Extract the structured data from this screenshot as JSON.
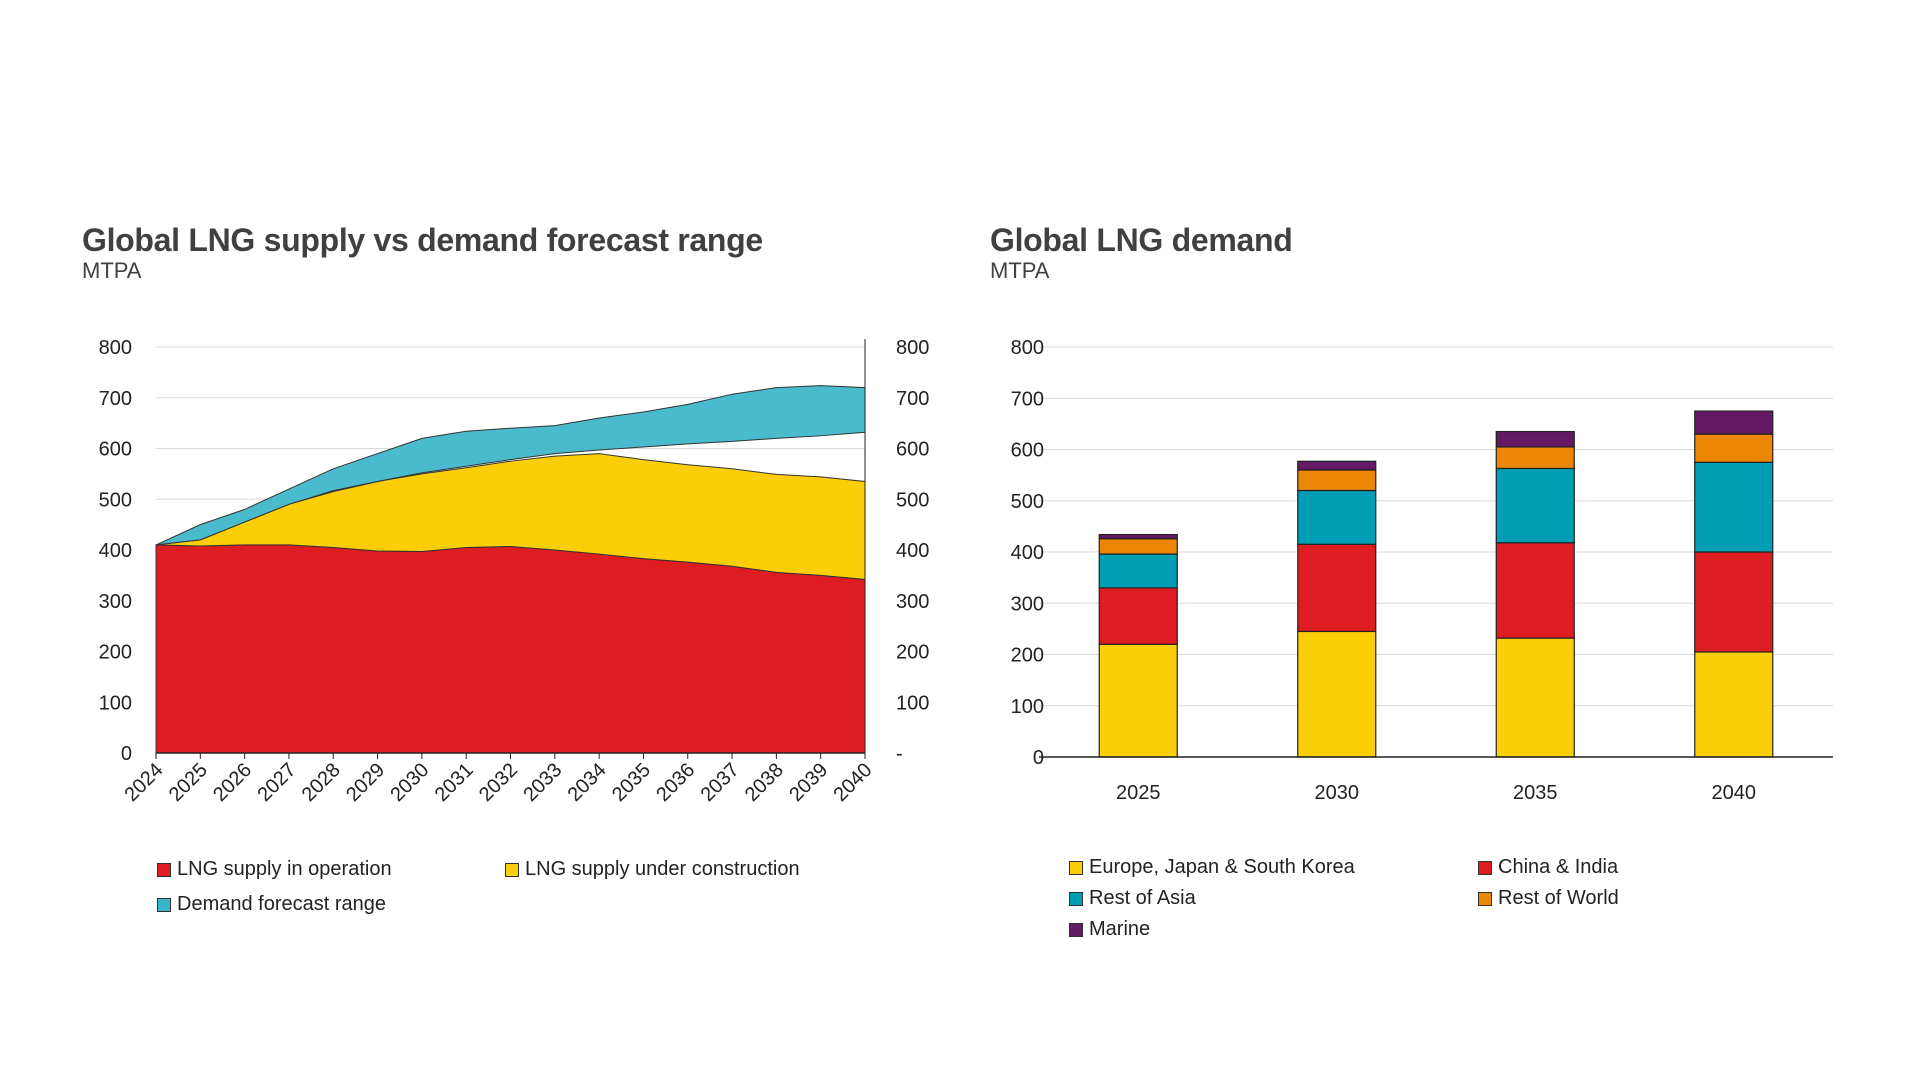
{
  "chart_data": [
    {
      "type": "area",
      "title": "Global LNG supply vs demand forecast range",
      "subtitle": "MTPA",
      "x": [
        "2024",
        "2025",
        "2026",
        "2027",
        "2028",
        "2029",
        "2030",
        "2031",
        "2032",
        "2033",
        "2034",
        "2035",
        "2036",
        "2037",
        "2038",
        "2039",
        "2040"
      ],
      "series": [
        {
          "name": "LNG supply in operation",
          "color": "#DD1D21",
          "values": [
            410,
            408,
            410,
            410,
            405,
            398,
            397,
            405,
            407,
            400,
            392,
            383,
            376,
            368,
            356,
            350,
            342
          ]
        },
        {
          "name": "LNG supply under construction",
          "color": "#FBCE07",
          "values": [
            0,
            12,
            45,
            80,
            110,
            137,
            153,
            157,
            168,
            185,
            198,
            195,
            192,
            192,
            193,
            194,
            193
          ]
        },
        {
          "name": "Demand forecast range",
          "color": "#3BB5C8",
          "low": [
            410,
            420,
            455,
            490,
            517,
            535,
            552,
            565,
            578,
            590,
            597,
            603,
            609,
            614,
            620,
            625,
            632
          ],
          "high": [
            410,
            450,
            480,
            520,
            560,
            590,
            620,
            634,
            640,
            645,
            660,
            672,
            687,
            707,
            720,
            724,
            720
          ]
        }
      ],
      "ylim": [
        0,
        800
      ],
      "yticks": [
        "0",
        "100",
        "200",
        "300",
        "400",
        "500",
        "600",
        "700",
        "800"
      ],
      "y2ticks": [
        "-",
        "100",
        "200",
        "300",
        "400",
        "500",
        "600",
        "700",
        "800"
      ],
      "grid": true,
      "legend": "bottom"
    },
    {
      "type": "bar",
      "stacked": true,
      "title": "Global LNG demand",
      "subtitle": "MTPA",
      "categories": [
        "2025",
        "2030",
        "2035",
        "2040"
      ],
      "series": [
        {
          "name": "Europe, Japan & South Korea",
          "color": "#FBCE07",
          "values": [
            220,
            245,
            232,
            205
          ]
        },
        {
          "name": "China & India",
          "color": "#DD1D21",
          "values": [
            110,
            170,
            186,
            195
          ]
        },
        {
          "name": "Rest of Asia",
          "color": "#009EB4",
          "values": [
            66,
            105,
            145,
            175
          ]
        },
        {
          "name": "Rest of World",
          "color": "#EB8705",
          "values": [
            30,
            40,
            42,
            55
          ]
        },
        {
          "name": "Marine",
          "color": "#641964",
          "values": [
            8,
            17,
            30,
            45
          ]
        }
      ],
      "ylim": [
        0,
        800
      ],
      "yticks": [
        "0",
        "100",
        "200",
        "300",
        "400",
        "500",
        "600",
        "700",
        "800"
      ],
      "grid": true,
      "legend": "bottom"
    }
  ]
}
